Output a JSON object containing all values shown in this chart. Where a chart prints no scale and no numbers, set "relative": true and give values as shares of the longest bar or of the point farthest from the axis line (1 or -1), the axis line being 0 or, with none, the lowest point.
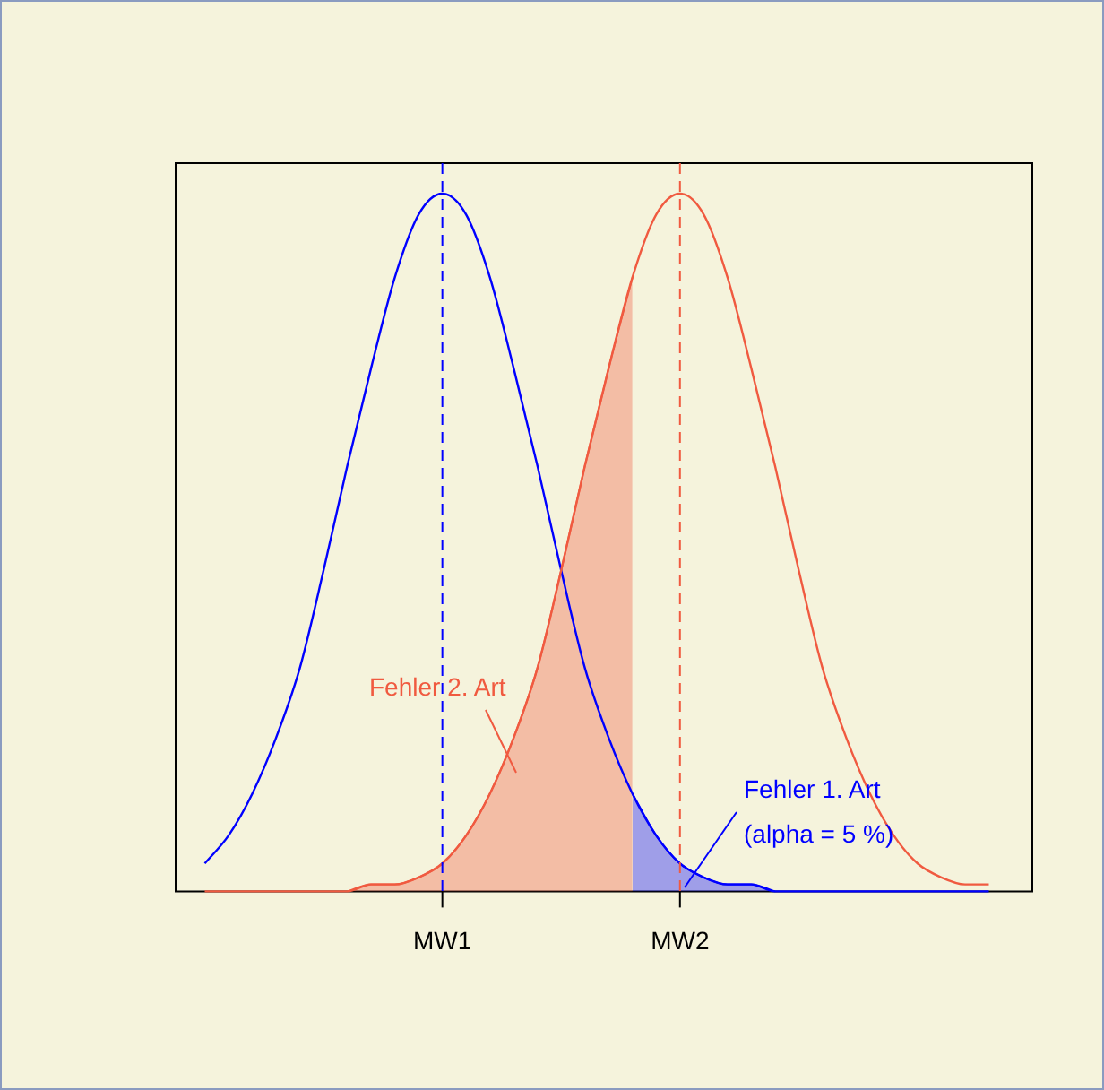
{
  "chart_data": {
    "type": "line",
    "relative": true,
    "categories": [
      null,
      null,
      null,
      null,
      null,
      null,
      null,
      null,
      null,
      null,
      null,
      "MW1",
      null,
      null,
      null,
      null,
      null,
      null,
      null,
      null,
      null,
      "MW2",
      null,
      null,
      null,
      null,
      null,
      null,
      null,
      null,
      null,
      null,
      null,
      null,
      null,
      null
    ],
    "series": [
      {
        "type": "line",
        "color": "#f05a40",
        "values": [
          null,
          0,
          0,
          0,
          0,
          0,
          0,
          0,
          0.01,
          0.01,
          0.02,
          0.04,
          0.08,
          0.14,
          0.22,
          0.32,
          0.46,
          0.61,
          0.75,
          0.88,
          0.97,
          1,
          0.97,
          0.88,
          0.75,
          0.61,
          0.46,
          0.32,
          0.22,
          0.14,
          0.08,
          0.04,
          0.02,
          0.01,
          0.01,
          null
        ]
      },
      {
        "type": "line",
        "color": "#0000ff",
        "values": [
          null,
          0.04,
          0.08,
          0.14,
          0.22,
          0.32,
          0.46,
          0.61,
          0.75,
          0.88,
          0.97,
          1,
          0.97,
          0.88,
          0.75,
          0.61,
          0.46,
          0.32,
          0.22,
          0.14,
          0.08,
          0.04,
          0.02,
          0.01,
          0.01,
          0,
          0,
          0,
          0,
          0,
          0,
          0,
          0,
          0,
          0,
          null
        ]
      },
      {
        "type": "area",
        "color": "#f05a40",
        "values": [
          null,
          null,
          null,
          null,
          null,
          null,
          null,
          0,
          0.01,
          0.01,
          0.02,
          0.04,
          0.08,
          0.14,
          0.22,
          0.32,
          0.46,
          0.61,
          0.75,
          0.88,
          null,
          null,
          null,
          null,
          null,
          null,
          null,
          null,
          null,
          null,
          null,
          null,
          null,
          null,
          null,
          null
        ]
      },
      {
        "type": "area",
        "color": "#0000ff",
        "values": [
          null,
          null,
          null,
          null,
          null,
          null,
          null,
          null,
          null,
          null,
          null,
          null,
          null,
          null,
          null,
          null,
          null,
          null,
          null,
          0.14,
          0.08,
          0.04,
          0.02,
          0.01,
          0.01,
          0,
          null,
          null,
          null,
          null,
          null,
          null,
          null,
          null,
          null,
          null
        ]
      }
    ],
    "ref_lines": [
      {
        "axis": "x",
        "value": "MW1",
        "color": "#0000ff",
        "line_style": "dashed"
      },
      {
        "axis": "x",
        "value": "MW2",
        "color": "#f05a40",
        "line_style": "dashed"
      }
    ],
    "annotations": [
      "Fehler 2. Art",
      "Fehler 1. Art\n(alpha = 5 %)"
    ],
    "grid": false,
    "legend": false,
    "marker": "none",
    "line_style": "solid"
  }
}
